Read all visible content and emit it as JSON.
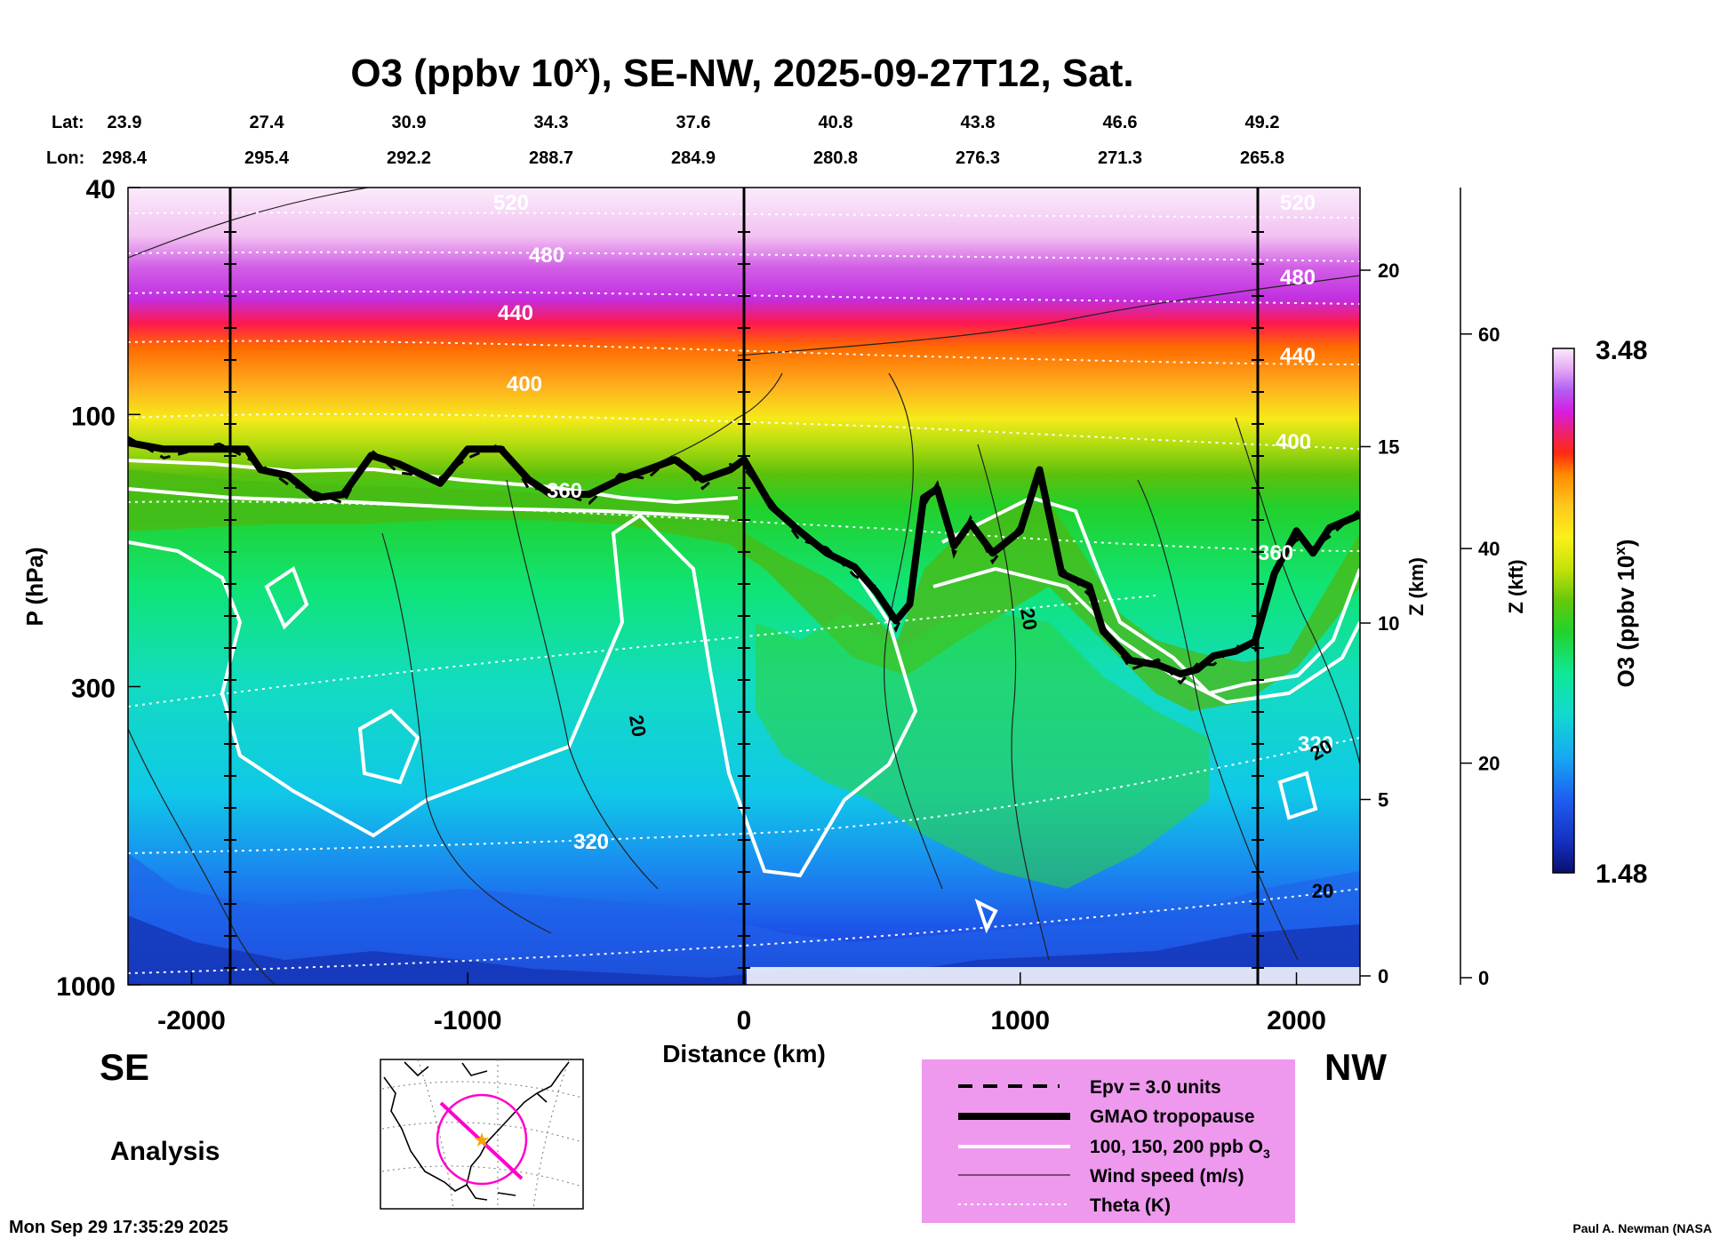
{
  "chart_data": {
    "type": "heatmap",
    "title_prefix": "O3 (ppbv 10",
    "title_sup": "x",
    "title_suffix": "), SE-NW, 2025-09-27T12, Sat.",
    "xlabel": "Distance (km)",
    "ylabel": "P (hPa)",
    "z_km_label": "Z (km)",
    "z_kft_label": "Z (kft)",
    "xlim": [
      -2230,
      2230
    ],
    "ylim_hpa": [
      1000,
      40
    ],
    "x_ticks": [
      -2000,
      -1000,
      0,
      1000,
      2000
    ],
    "y_ticks_hpa": [
      40,
      100,
      300,
      1000
    ],
    "z_km_ticks": [
      0,
      5,
      10,
      15,
      20
    ],
    "z_kft_ticks": [
      0,
      20,
      40,
      60
    ],
    "lat_label": "Lat:",
    "lon_label": "Lon:",
    "lat_values": [
      "23.9",
      "27.4",
      "30.9",
      "34.3",
      "37.6",
      "40.8",
      "43.8",
      "46.6",
      "49.2"
    ],
    "lon_values": [
      "298.4",
      "295.4",
      "292.2",
      "288.7",
      "284.9",
      "280.8",
      "276.3",
      "271.3",
      "265.8"
    ],
    "location_marker_x_km": [
      -1860,
      0,
      1860
    ],
    "colorbar": {
      "min_label": "1.48",
      "max_label": "3.48",
      "label_prefix": "O3 (ppbv 10",
      "label_sup": "x",
      "label_suffix": ")"
    },
    "theta_contours_K": [
      320,
      360,
      400,
      440,
      480,
      520
    ],
    "theta_contour_labels": [
      "320",
      "360",
      "400",
      "440",
      "480",
      "520",
      "320",
      "360",
      "400",
      "440",
      "480",
      "520"
    ],
    "wind_contour_labels": [
      "20",
      "20",
      "20",
      "20"
    ],
    "tropopause_hpa": [
      [
        -2230,
        112
      ],
      [
        -2100,
        115
      ],
      [
        -1900,
        115
      ],
      [
        -1800,
        115
      ],
      [
        -1750,
        125
      ],
      [
        -1650,
        128
      ],
      [
        -1550,
        140
      ],
      [
        -1450,
        138
      ],
      [
        -1350,
        118
      ],
      [
        -1250,
        122
      ],
      [
        -1100,
        132
      ],
      [
        -1000,
        115
      ],
      [
        -880,
        115
      ],
      [
        -780,
        130
      ],
      [
        -700,
        138
      ],
      [
        -560,
        138
      ],
      [
        -450,
        130
      ],
      [
        -350,
        125
      ],
      [
        -250,
        120
      ],
      [
        -150,
        130
      ],
      [
        -50,
        125
      ],
      [
        0,
        120
      ],
      [
        100,
        145
      ],
      [
        200,
        160
      ],
      [
        300,
        175
      ],
      [
        400,
        185
      ],
      [
        480,
        205
      ],
      [
        550,
        230
      ],
      [
        600,
        215
      ],
      [
        650,
        140
      ],
      [
        700,
        135
      ],
      [
        760,
        170
      ],
      [
        820,
        155
      ],
      [
        900,
        175
      ],
      [
        1000,
        160
      ],
      [
        1070,
        125
      ],
      [
        1150,
        190
      ],
      [
        1250,
        200
      ],
      [
        1300,
        240
      ],
      [
        1400,
        270
      ],
      [
        1500,
        275
      ],
      [
        1580,
        285
      ],
      [
        1640,
        280
      ],
      [
        1700,
        265
      ],
      [
        1780,
        260
      ],
      [
        1850,
        250
      ],
      [
        1920,
        190
      ],
      [
        2000,
        160
      ],
      [
        2060,
        175
      ],
      [
        2120,
        158
      ],
      [
        2230,
        150
      ]
    ],
    "side_labels": {
      "left": "SE",
      "right": "NW"
    },
    "analysis_label": "Analysis",
    "legend": [
      {
        "style": "dashed",
        "label": "Epv = 3.0 units"
      },
      {
        "style": "thick",
        "label": "GMAO tropopause"
      },
      {
        "style": "white",
        "label": "100, 150, 200 ppb O"
      },
      {
        "style": "thin",
        "label": "Wind speed (m/s)"
      },
      {
        "style": "dotted",
        "label": "Theta (K)"
      }
    ],
    "legend_ozone_subscript": "3",
    "legend_bg": "#ee99ee",
    "timestamp": "Mon Sep 29 17:35:29 2025",
    "credit": "Paul A. Newman (NASA"
  }
}
